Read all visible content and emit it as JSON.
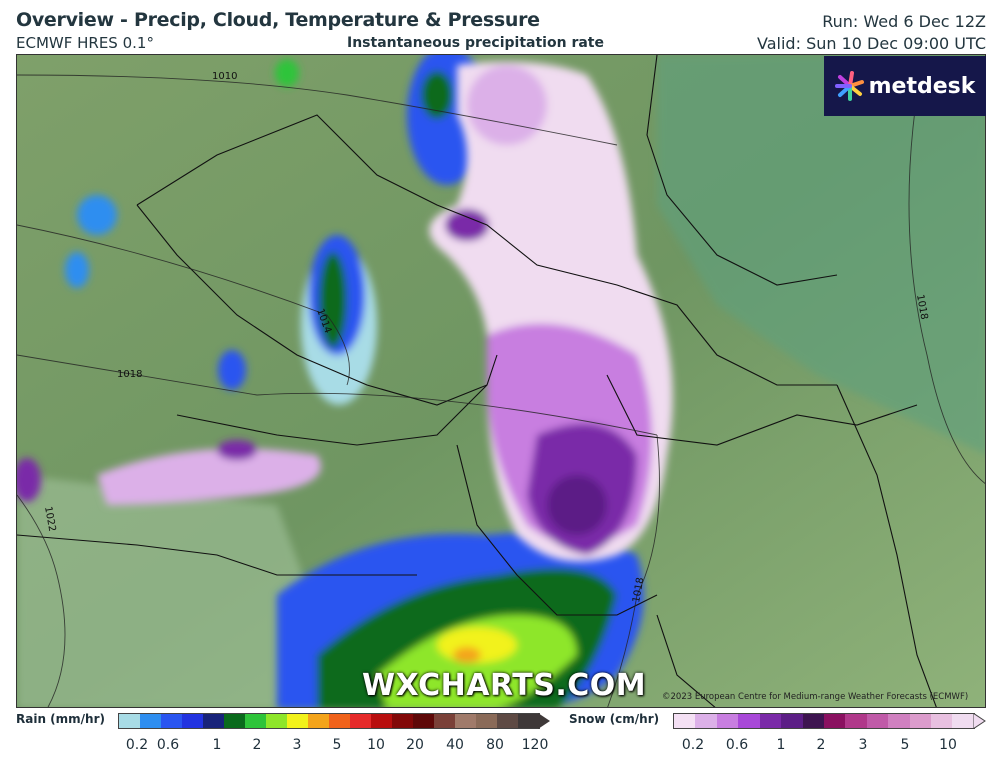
{
  "header": {
    "title": "Overview - Precip, Cloud, Temperature & Pressure",
    "model": "ECMWF HRES 0.1°",
    "subtitle": "Instantaneous precipitation rate",
    "run": "Run: Wed 6 Dec 12Z",
    "valid": "Valid: Sun 10 Dec 09:00 UTC"
  },
  "map": {
    "isobar_labels": [
      "1010",
      "1014",
      "1018",
      "1018",
      "1018",
      "1022"
    ],
    "watermark": "WXCHARTS.COM",
    "copyright": "©2023 European Centre for Medium-range Weather Forecasts (ECMWF)",
    "logo": "metdesk"
  },
  "legend": {
    "rain": {
      "label": "Rain (mm/hr)",
      "colors": [
        "#a8dce6",
        "#2e8ef0",
        "#2a55f0",
        "#2233e0",
        "#18237a",
        "#0a6a1c",
        "#2ec43a",
        "#8ee62a",
        "#f2f21a",
        "#f4a41a",
        "#f0621a",
        "#e62a2a",
        "#b80e0e",
        "#820808",
        "#5e0808",
        "#7a4038",
        "#a07a6a",
        "#8a6a58",
        "#5e4a44",
        "#3e3838"
      ],
      "ticks": [
        "0.2",
        "0.6",
        "1",
        "2",
        "3",
        "5",
        "10",
        "20",
        "40",
        "80",
        "120"
      ]
    },
    "snow": {
      "label": "Snow (cm/hr)",
      "colors": [
        "#f4e0f4",
        "#dcb0e8",
        "#c87ee0",
        "#a848d8",
        "#7a2aa8",
        "#5c1e86",
        "#3e1450",
        "#8a1060",
        "#b0388a",
        "#c05aa8",
        "#d080c0",
        "#dc9ccc",
        "#e8c0e0",
        "#f0dcf0"
      ],
      "ticks": [
        "0.2",
        "0.6",
        "1",
        "2",
        "3",
        "5",
        "10"
      ]
    }
  }
}
